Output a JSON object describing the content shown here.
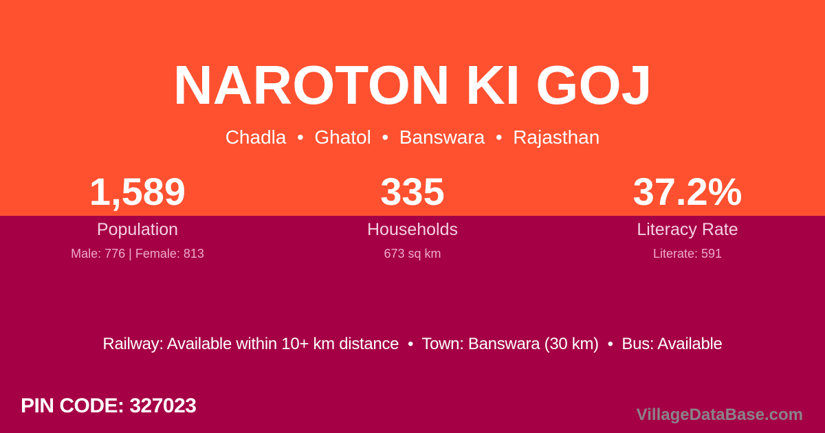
{
  "colors": {
    "top_background": "#ff5130",
    "bottom_background": "#a50045",
    "primary_text": "#ffffff",
    "stat_label_pink": "#f6cfe3",
    "stat_detail_pink": "#efa9ca",
    "watermark_gray": "#8b8289"
  },
  "header": {
    "title": "NAROTON KI GOJ",
    "location_path": "Chadla  •  Ghatol  •  Banswara  •  Rajasthan",
    "location_items": [
      "Chadla",
      "Ghatol",
      "Banswara",
      "Rajasthan"
    ]
  },
  "stats": [
    {
      "value": "1,589",
      "label": "Population",
      "detail": "Male: 776 | Female: 813"
    },
    {
      "value": "335",
      "label": "Households",
      "detail": "673 sq km"
    },
    {
      "value": "37.2%",
      "label": "Literacy Rate",
      "detail": "Literate: 591"
    }
  ],
  "transport": {
    "display": "Railway: Available within 10+ km distance  •  Town: Banswara (30 km)  •  Bus: Available",
    "railway": "Available within 10+ km distance",
    "town": "Banswara (30 km)",
    "bus": "Available"
  },
  "footer": {
    "pin_display": "PIN CODE: 327023",
    "pin_code": "327023",
    "watermark": "VillageDataBase.com"
  }
}
